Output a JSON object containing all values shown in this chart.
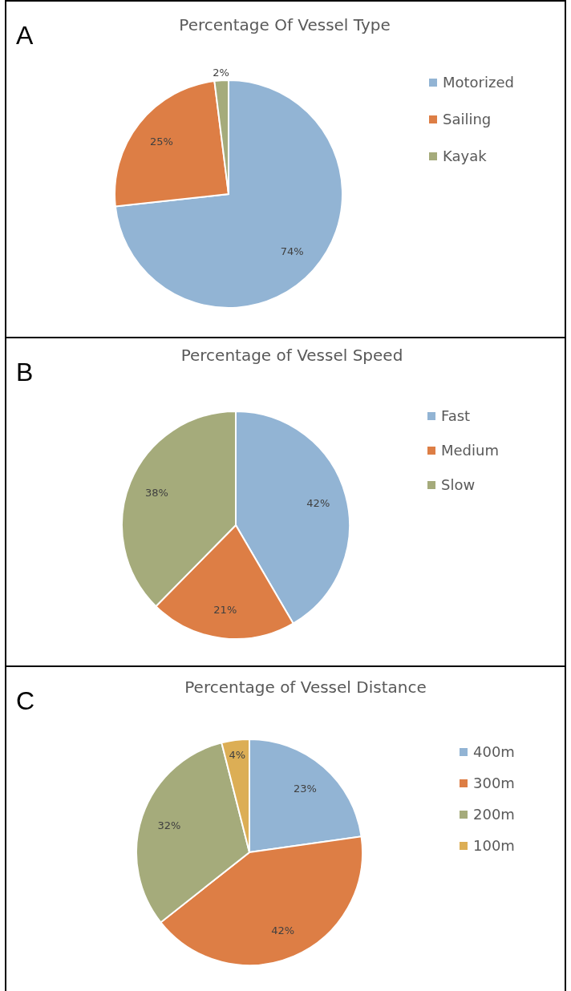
{
  "chart_data": [
    {
      "type": "pie",
      "title": "Percentage Of Vessel Type",
      "annotations": [
        "A"
      ],
      "categories": [
        "Motorized",
        "Sailing",
        "Kayak"
      ],
      "values": [
        74,
        25,
        2
      ],
      "value_labels": [
        "74%",
        "25%",
        "2%"
      ],
      "colors": [
        "#92b4d4",
        "#dd7e45",
        "#a5ab7b"
      ],
      "legend": "right"
    },
    {
      "type": "pie",
      "title": "Percentage of Vessel Speed",
      "annotations": [
        "B"
      ],
      "categories": [
        "Fast",
        "Medium",
        "Slow"
      ],
      "values": [
        42,
        21,
        38
      ],
      "value_labels": [
        "42%",
        "21%",
        "38%"
      ],
      "colors": [
        "#92b4d4",
        "#dd7e45",
        "#a5ab7b"
      ],
      "legend": "right"
    },
    {
      "type": "pie",
      "title": "Percentage of Vessel Distance",
      "annotations": [
        "C"
      ],
      "categories": [
        "400m",
        "300m",
        "200m",
        "100m"
      ],
      "values": [
        23,
        42,
        32,
        4
      ],
      "value_labels": [
        "23%",
        "42%",
        "32%",
        "4%"
      ],
      "colors": [
        "#92b4d4",
        "#dd7e45",
        "#a5ab7b",
        "#dcae55"
      ],
      "legend": "right"
    }
  ]
}
